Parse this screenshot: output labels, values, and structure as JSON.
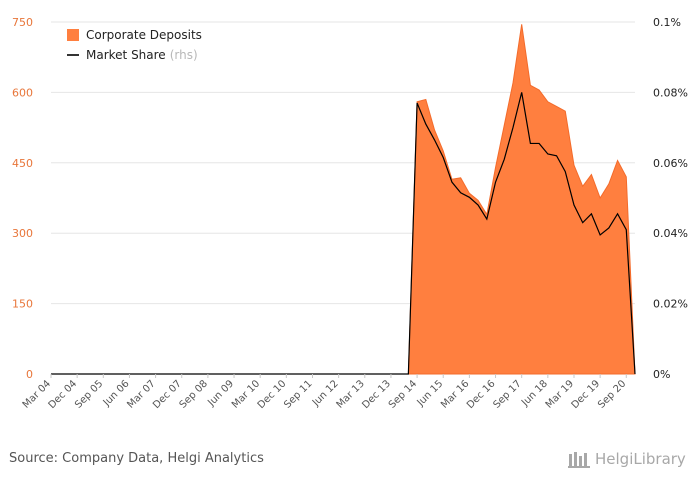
{
  "chart_data": {
    "type": "area",
    "title": "",
    "categories": [
      "Mar 04",
      "Jun 04",
      "Sep 04",
      "Dec 04",
      "Mar 05",
      "Jun 05",
      "Sep 05",
      "Dec 05",
      "Mar 06",
      "Jun 06",
      "Sep 06",
      "Dec 06",
      "Mar 07",
      "Jun 07",
      "Sep 07",
      "Dec 07",
      "Mar 08",
      "Jun 08",
      "Sep 08",
      "Dec 08",
      "Mar 09",
      "Jun 09",
      "Sep 09",
      "Dec 09",
      "Mar 10",
      "Jun 10",
      "Sep 10",
      "Dec 10",
      "Mar 11",
      "Jun 11",
      "Sep 11",
      "Dec 11",
      "Mar 12",
      "Jun 12",
      "Sep 12",
      "Dec 12",
      "Mar 13",
      "Jun 13",
      "Sep 13",
      "Dec 13",
      "Mar 14",
      "Jun 14",
      "Sep 14",
      "Dec 14",
      "Mar 15",
      "Jun 15",
      "Sep 15",
      "Dec 15",
      "Mar 16",
      "Jun 16",
      "Sep 16",
      "Dec 16",
      "Mar 17",
      "Jun 17",
      "Sep 17",
      "Dec 17",
      "Mar 18",
      "Jun 18",
      "Sep 18",
      "Dec 18",
      "Mar 19",
      "Jun 19",
      "Sep 19",
      "Dec 19",
      "Mar 20",
      "Jun 20",
      "Sep 20",
      "Dec 20"
    ],
    "x_tick_labels": [
      "Mar 04",
      "Dec 04",
      "Sep 05",
      "Jun 06",
      "Mar 07",
      "Dec 07",
      "Sep 08",
      "Jun 09",
      "Mar 10",
      "Dec 10",
      "Sep 11",
      "Jun 12",
      "Mar 13",
      "Dec 13",
      "Sep 14",
      "Jun 15",
      "Mar 16",
      "Dec 16",
      "Sep 17",
      "Jun 18",
      "Mar 19",
      "Dec 19",
      "Sep 20"
    ],
    "series": [
      {
        "name": "Corporate Deposits",
        "axis": "left",
        "color": "#ff7f3f",
        "values": [
          0,
          0,
          0,
          0,
          0,
          0,
          0,
          0,
          0,
          0,
          0,
          0,
          0,
          0,
          0,
          0,
          0,
          0,
          0,
          0,
          0,
          0,
          0,
          0,
          0,
          0,
          0,
          0,
          0,
          0,
          0,
          0,
          0,
          0,
          0,
          0,
          0,
          0,
          0,
          0,
          0,
          0,
          580,
          585,
          520,
          475,
          415,
          418,
          385,
          370,
          340,
          440,
          530,
          620,
          745,
          615,
          605,
          580,
          570,
          560,
          445,
          400,
          425,
          375,
          405,
          455,
          420,
          0
        ]
      },
      {
        "name": "Market Share",
        "axis_note": "(rhs)",
        "axis": "right",
        "color": "#000000",
        "values": [
          0,
          0,
          0,
          0,
          0,
          0,
          0,
          0,
          0,
          0,
          0,
          0,
          0,
          0,
          0,
          0,
          0,
          0,
          0,
          0,
          0,
          0,
          0,
          0,
          0,
          0,
          0,
          0,
          0,
          0,
          0,
          0,
          0,
          0,
          0,
          0,
          0,
          0,
          0,
          0,
          0,
          0,
          0.077,
          0.071,
          0.0665,
          0.0615,
          0.0545,
          0.0515,
          0.0502,
          0.048,
          0.044,
          0.0545,
          0.061,
          0.07,
          0.08,
          0.0655,
          0.0655,
          0.0625,
          0.062,
          0.0575,
          0.048,
          0.043,
          0.0455,
          0.0395,
          0.0415,
          0.0455,
          0.041,
          0
        ]
      }
    ],
    "y_left": {
      "ylim": [
        0,
        750
      ],
      "ticks": [
        0,
        150,
        300,
        450,
        600,
        750
      ],
      "tick_labels": [
        "0",
        "150",
        "300",
        "450",
        "600",
        "750"
      ],
      "color": "#e8763a"
    },
    "y_right": {
      "ylim": [
        0,
        0.1
      ],
      "ticks": [
        0,
        0.02,
        0.04,
        0.06,
        0.08,
        0.1
      ],
      "tick_labels": [
        "0%",
        "0.02%",
        "0.04%",
        "0.06%",
        "0.08%",
        "0.1%"
      ]
    },
    "grid": true,
    "legend_placement": "top-left"
  },
  "legend": {
    "deposits_label": "Corporate Deposits",
    "share_label": "Market Share",
    "share_note": "(rhs)"
  },
  "footer": {
    "source": "Source: Company Data, Helgi Analytics",
    "brand": "HelgiLibrary"
  }
}
